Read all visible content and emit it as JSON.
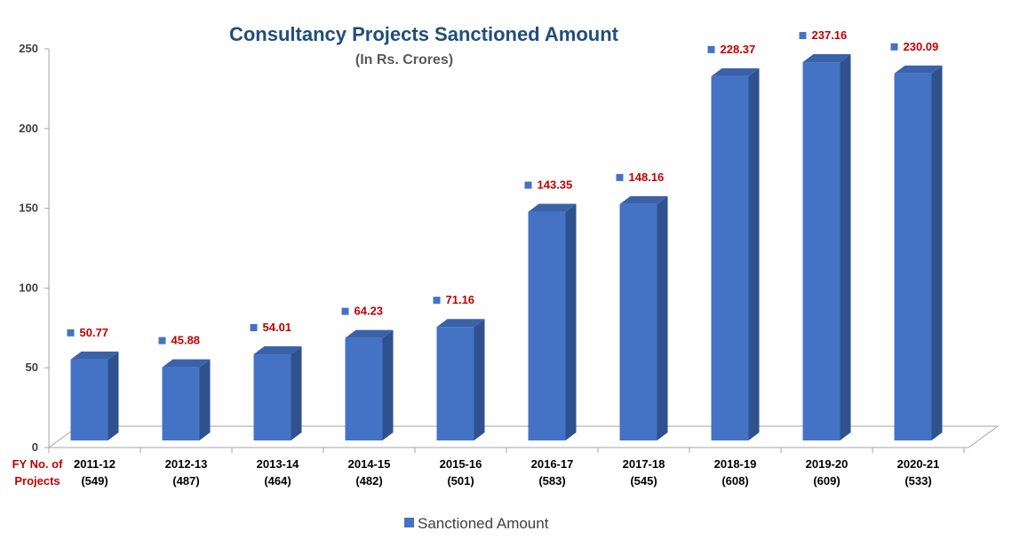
{
  "chart_data": {
    "type": "bar",
    "title": "Consultancy Projects Sanctioned Amount",
    "subtitle": "(In Rs. Crores)",
    "axis_corner_label": [
      "FY No. of",
      "Projects"
    ],
    "categories": [
      "2011-12",
      "2012-13",
      "2013-14",
      "2014-15",
      "2015-16",
      "2016-17",
      "2017-18",
      "2018-19",
      "2019-20",
      "2020-21"
    ],
    "project_counts": [
      "(549)",
      "(487)",
      "(464)",
      "(482)",
      "(501)",
      "(583)",
      "(545)",
      "(608)",
      "(609)",
      "(533)"
    ],
    "series": [
      {
        "name": "Sanctioned Amount",
        "values": [
          50.77,
          45.88,
          54.01,
          64.23,
          71.16,
          143.35,
          148.16,
          228.37,
          237.16,
          230.09
        ],
        "labels": [
          "50.77",
          "45.88",
          "54.01",
          "64.23",
          "71.16",
          "143.35",
          "148.16",
          "228.37",
          "237.16",
          "230.09"
        ]
      }
    ],
    "yticks": [
      "0",
      "50",
      "100",
      "150",
      "200",
      "250"
    ],
    "ylim": [
      0,
      250
    ],
    "grid": false,
    "legend_position": "bottom",
    "style": "3d-column"
  },
  "colors": {
    "bar_front": "#4472c4",
    "bar_side": "#2f528f",
    "bar_top": "#3a62aa",
    "data_label": "#c00000",
    "marker": "#4472c4",
    "axis": "#a6a6a6",
    "title": "#1f4e79",
    "fy_label": "#c00000"
  }
}
